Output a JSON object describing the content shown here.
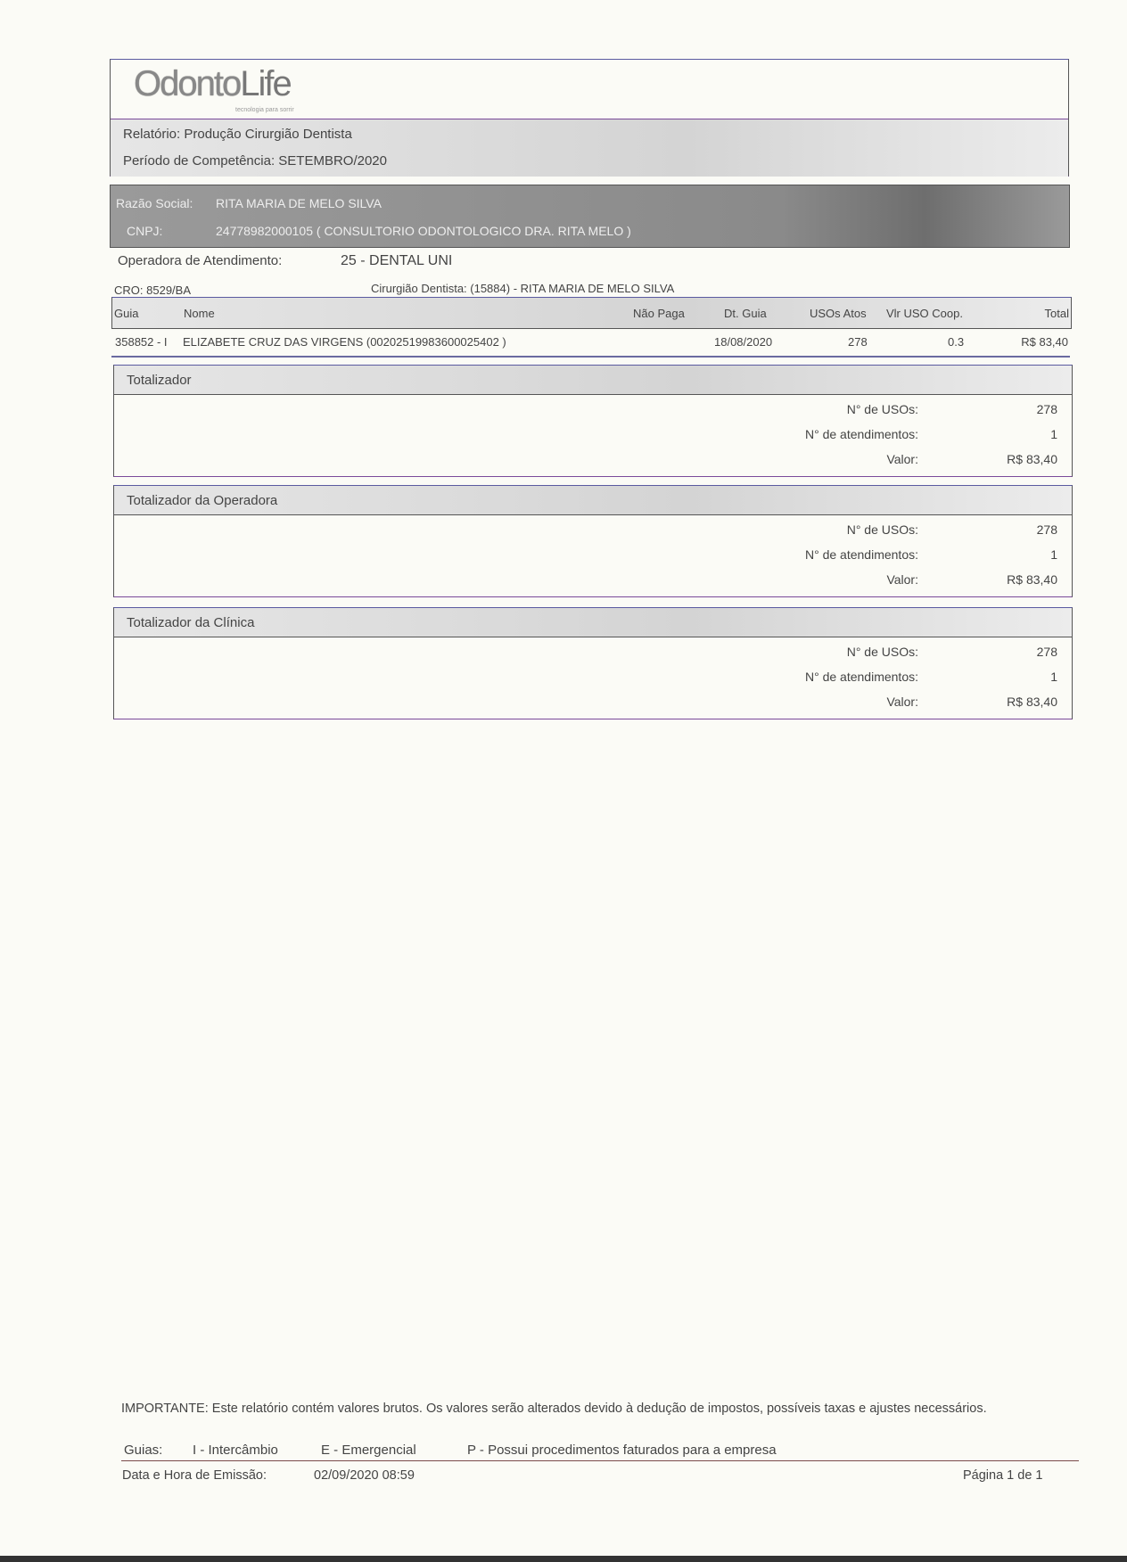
{
  "logo": {
    "text_main": "Odonto",
    "text_life": "Life",
    "tagline": "tecnologia para sorrir"
  },
  "report": {
    "label": "Relatório:",
    "value": "Produção Cirurgião Dentista",
    "period_label": "Período de Competência:",
    "period_value": "SETEMBRO/2020"
  },
  "company": {
    "razao_label": "Razão Social:",
    "razao_value": "RITA MARIA DE MELO SILVA",
    "cnpj_label": "CNPJ:",
    "cnpj_value": "24778982000105 ( CONSULTORIO ODONTOLOGICO DRA. RITA MELO )"
  },
  "operadora": {
    "label": "Operadora de Atendimento:",
    "value": "25 - DENTAL UNI"
  },
  "cro": {
    "label": "CRO:",
    "value": "8529/BA",
    "dentist": "Cirurgião Dentista: (15884) - RITA MARIA DE MELO SILVA"
  },
  "table": {
    "headers": [
      "Guia",
      "Nome",
      "Não Paga",
      "Dt. Guia",
      "USOs Atos",
      "Vlr USO Coop.",
      "Total"
    ],
    "rows": [
      {
        "guia": "358852 - I",
        "nome": "ELIZABETE CRUZ DAS VIRGENS (00202519983600025402 )",
        "nao_paga": "",
        "dt": "18/08/2020",
        "usos": "278",
        "vlr": "0.3",
        "total": "R$ 83,40"
      }
    ]
  },
  "totals": [
    {
      "title": "Totalizador",
      "usos_label": "N° de USOs:",
      "usos": "278",
      "atend_label": "N° de atendimentos:",
      "atend": "1",
      "valor_label": "Valor:",
      "valor": "R$ 83,40"
    },
    {
      "title": "Totalizador da Operadora",
      "usos_label": "N° de USOs:",
      "usos": "278",
      "atend_label": "N° de atendimentos:",
      "atend": "1",
      "valor_label": "Valor:",
      "valor": "R$ 83,40"
    },
    {
      "title": "Totalizador da Clínica",
      "usos_label": "N° de USOs:",
      "usos": "278",
      "atend_label": "N° de atendimentos:",
      "atend": "1",
      "valor_label": "Valor:",
      "valor": "R$ 83,40"
    }
  ],
  "footer": {
    "important": "IMPORTANTE: Este relatório contém valores brutos. Os valores serão alterados devido à dedução de impostos, possíveis taxas e ajustes necessários.",
    "guias_label": "Guias:",
    "guia_i": "I - Intercâmbio",
    "guia_e": "E - Emergencial",
    "guia_p": "P - Possui procedimentos faturados para a empresa",
    "emissao_label": "Data e Hora de Emissão:",
    "emissao_value": "02/09/2020  08:59",
    "page": "Página 1 de 1"
  }
}
